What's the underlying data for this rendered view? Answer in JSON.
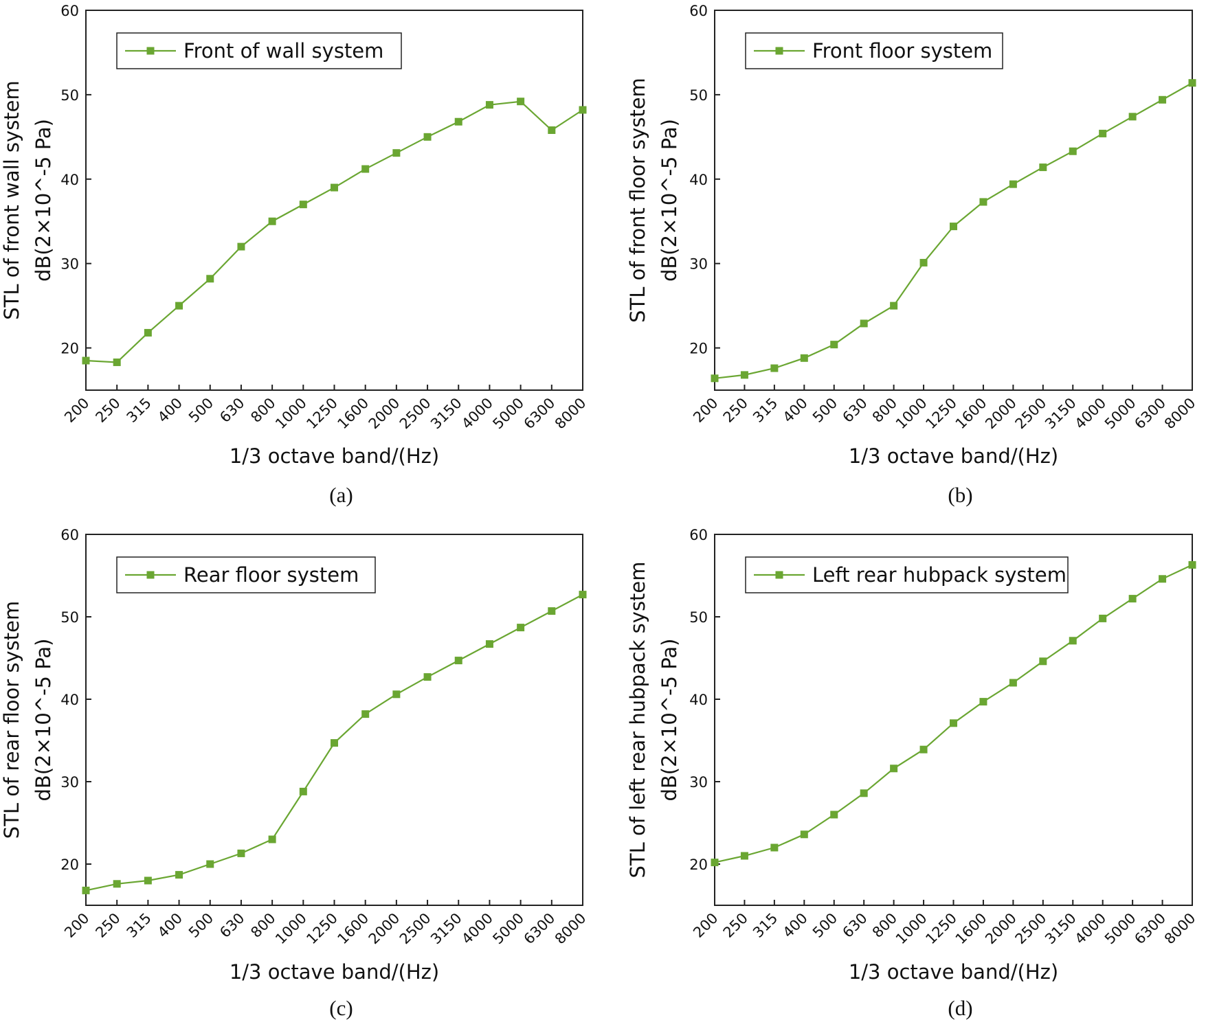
{
  "chart_data": [
    {
      "type": "line",
      "panel_label": "(a)",
      "title": "",
      "categories": [
        "200",
        "250",
        "315",
        "400",
        "500",
        "630",
        "800",
        "1000",
        "1250",
        "1600",
        "2000",
        "2500",
        "3150",
        "4000",
        "5000",
        "6300",
        "8000"
      ],
      "series": [
        {
          "name": "Front of wall system",
          "color": "#6aa632",
          "marker": "square",
          "values": [
            18.5,
            18.3,
            21.8,
            25.0,
            28.2,
            32.0,
            35.0,
            37.0,
            39.0,
            41.2,
            43.1,
            45.0,
            46.8,
            48.8,
            49.2,
            45.8,
            48.2
          ]
        }
      ],
      "xlabel": "1/3 octave band/(Hz)",
      "ylabel_line1": "STL of front wall system",
      "ylabel_line2": "dB(2×10^-5 Pa)",
      "ylim": [
        15,
        60
      ],
      "yticks": [
        20,
        30,
        40,
        50,
        60
      ],
      "legend_position": "top-left",
      "grid": false
    },
    {
      "type": "line",
      "panel_label": "(b)",
      "title": "",
      "categories": [
        "200",
        "250",
        "315",
        "400",
        "500",
        "630",
        "800",
        "1000",
        "1250",
        "1600",
        "2000",
        "2500",
        "3150",
        "4000",
        "5000",
        "6300",
        "8000"
      ],
      "series": [
        {
          "name": "Front floor system",
          "color": "#6aa632",
          "marker": "square",
          "values": [
            16.4,
            16.8,
            17.6,
            18.8,
            20.4,
            22.9,
            25.0,
            30.1,
            34.4,
            37.3,
            39.4,
            41.4,
            43.3,
            45.4,
            47.4,
            49.4,
            51.4
          ]
        }
      ],
      "xlabel": "1/3 octave band/(Hz)",
      "ylabel_line1": "STL of front floor system",
      "ylabel_line2": "dB(2×10^-5 Pa)",
      "ylim": [
        15,
        60
      ],
      "yticks": [
        20,
        30,
        40,
        50,
        60
      ],
      "legend_position": "top-left",
      "grid": false
    },
    {
      "type": "line",
      "panel_label": "(c)",
      "title": "",
      "categories": [
        "200",
        "250",
        "315",
        "400",
        "500",
        "630",
        "800",
        "1000",
        "1250",
        "1600",
        "2000",
        "2500",
        "3150",
        "4000",
        "5000",
        "6300",
        "8000"
      ],
      "series": [
        {
          "name": "Rear floor system",
          "color": "#6aa632",
          "marker": "square",
          "values": [
            16.8,
            17.6,
            18.0,
            18.7,
            20.0,
            21.3,
            23.0,
            28.8,
            34.7,
            38.2,
            40.6,
            42.7,
            44.7,
            46.7,
            48.7,
            50.7,
            52.7
          ]
        }
      ],
      "xlabel": "1/3 octave band/(Hz)",
      "ylabel_line1": "STL of rear floor system",
      "ylabel_line2": "dB(2×10^-5 Pa)",
      "ylim": [
        15,
        60
      ],
      "yticks": [
        20,
        30,
        40,
        50,
        60
      ],
      "legend_position": "top-left",
      "grid": false
    },
    {
      "type": "line",
      "panel_label": "(d)",
      "title": "",
      "categories": [
        "200",
        "250",
        "315",
        "400",
        "500",
        "630",
        "800",
        "1000",
        "1250",
        "1600",
        "2000",
        "2500",
        "3150",
        "4000",
        "5000",
        "6300",
        "8000"
      ],
      "series": [
        {
          "name": "Left rear hubpack system",
          "color": "#6aa632",
          "marker": "square",
          "values": [
            20.2,
            21.0,
            22.0,
            23.6,
            26.0,
            28.6,
            31.6,
            33.9,
            37.1,
            39.7,
            42.0,
            44.6,
            47.1,
            49.8,
            52.2,
            54.6,
            56.3
          ]
        }
      ],
      "xlabel": "1/3 octave band/(Hz)",
      "ylabel_line1": "STL of left rear hubpack system",
      "ylabel_line2": "dB(2×10^-5 Pa)",
      "ylim": [
        15,
        60
      ],
      "yticks": [
        20,
        30,
        40,
        50,
        60
      ],
      "legend_position": "top-left",
      "grid": false
    }
  ]
}
